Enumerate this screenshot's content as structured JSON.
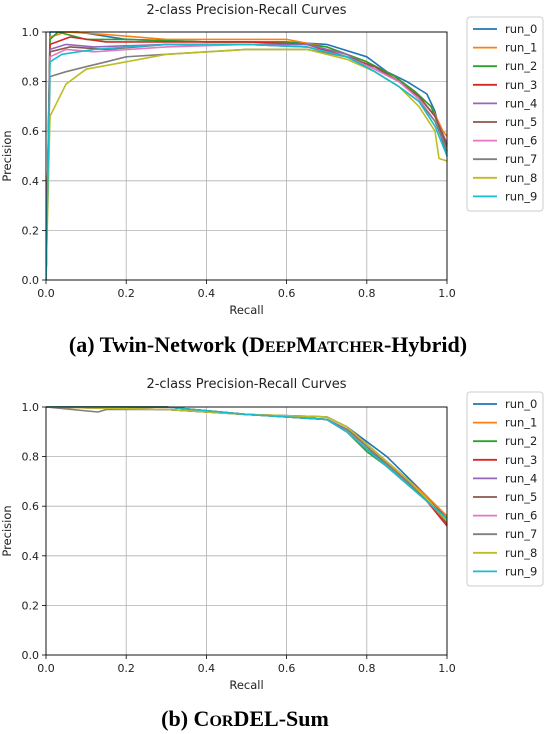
{
  "colors": [
    "#1f77b4",
    "#ff7f0e",
    "#2ca02c",
    "#d62728",
    "#9467bd",
    "#8c564b",
    "#e377c2",
    "#7f7f7f",
    "#bcbd22",
    "#17becf"
  ],
  "captions": {
    "a": {
      "pre": "(a) Twin-Network (D",
      "sc1": "EEP",
      "mid": "M",
      "sc2": "ATCHER",
      "post": "-Hybrid)"
    },
    "b": {
      "pre": "(b) C",
      "sc1": "OR",
      "post": "DEL-Sum"
    }
  },
  "chart_data": [
    {
      "type": "line",
      "title": "2-class Precision-Recall Curves",
      "xlabel": "Recall",
      "ylabel": "Precision",
      "xlim": [
        0,
        1
      ],
      "ylim": [
        0,
        1
      ],
      "xticks": [
        "0.0",
        "0.2",
        "0.4",
        "0.6",
        "0.8",
        "1.0"
      ],
      "yticks": [
        "0.0",
        "0.2",
        "0.4",
        "0.6",
        "0.8",
        "1.0"
      ],
      "grid": true,
      "legend_position": "outside-right",
      "series": [
        {
          "name": "run_0",
          "x": [
            0,
            0.01,
            0.03,
            0.08,
            0.2,
            0.4,
            0.6,
            0.7,
            0.8,
            0.85,
            0.9,
            0.95,
            0.97,
            0.99,
            1.0
          ],
          "y": [
            0,
            1.0,
            1.0,
            1.0,
            0.97,
            0.96,
            0.96,
            0.95,
            0.9,
            0.84,
            0.8,
            0.75,
            0.68,
            0.55,
            0.5
          ]
        },
        {
          "name": "run_1",
          "x": [
            0,
            0.01,
            0.05,
            0.15,
            0.3,
            0.5,
            0.6,
            0.7,
            0.8,
            0.87,
            0.92,
            0.96,
            0.99,
            1.0
          ],
          "y": [
            0,
            0.98,
            1.0,
            0.99,
            0.97,
            0.97,
            0.97,
            0.94,
            0.88,
            0.82,
            0.76,
            0.7,
            0.6,
            0.58
          ]
        },
        {
          "name": "run_2",
          "x": [
            0,
            0.01,
            0.03,
            0.1,
            0.2,
            0.4,
            0.6,
            0.7,
            0.8,
            0.87,
            0.92,
            0.96,
            0.99,
            1.0
          ],
          "y": [
            0,
            0.97,
            1.0,
            0.97,
            0.97,
            0.96,
            0.96,
            0.94,
            0.88,
            0.82,
            0.76,
            0.7,
            0.58,
            0.52
          ]
        },
        {
          "name": "run_3",
          "x": [
            0,
            0.01,
            0.06,
            0.15,
            0.3,
            0.5,
            0.65,
            0.75,
            0.82,
            0.88,
            0.93,
            0.97,
            1.0
          ],
          "y": [
            0,
            0.95,
            0.98,
            0.96,
            0.96,
            0.96,
            0.95,
            0.9,
            0.86,
            0.8,
            0.74,
            0.66,
            0.55
          ]
        },
        {
          "name": "run_4",
          "x": [
            0,
            0.01,
            0.05,
            0.12,
            0.3,
            0.5,
            0.65,
            0.75,
            0.82,
            0.88,
            0.93,
            0.97,
            1.0
          ],
          "y": [
            0,
            0.93,
            0.95,
            0.94,
            0.95,
            0.95,
            0.95,
            0.91,
            0.85,
            0.8,
            0.74,
            0.66,
            0.55
          ]
        },
        {
          "name": "run_5",
          "x": [
            0,
            0.01,
            0.06,
            0.15,
            0.3,
            0.5,
            0.65,
            0.75,
            0.82,
            0.88,
            0.93,
            0.97,
            1.0
          ],
          "y": [
            0,
            0.92,
            0.94,
            0.93,
            0.95,
            0.95,
            0.94,
            0.9,
            0.86,
            0.8,
            0.74,
            0.66,
            0.54
          ]
        },
        {
          "name": "run_6",
          "x": [
            0,
            0.01,
            0.05,
            0.12,
            0.3,
            0.5,
            0.65,
            0.75,
            0.82,
            0.88,
            0.93,
            0.97,
            1.0
          ],
          "y": [
            0,
            0.9,
            0.93,
            0.92,
            0.94,
            0.95,
            0.94,
            0.9,
            0.85,
            0.8,
            0.73,
            0.64,
            0.52
          ]
        },
        {
          "name": "run_7",
          "x": [
            0,
            0.01,
            0.05,
            0.1,
            0.15,
            0.2,
            0.3,
            0.5,
            0.65,
            0.75,
            0.82,
            0.88,
            0.93,
            0.97,
            1.0
          ],
          "y": [
            0,
            0.82,
            0.84,
            0.86,
            0.88,
            0.9,
            0.91,
            0.93,
            0.93,
            0.9,
            0.84,
            0.78,
            0.72,
            0.64,
            0.52
          ]
        },
        {
          "name": "run_8",
          "x": [
            0,
            0.01,
            0.05,
            0.1,
            0.2,
            0.3,
            0.5,
            0.65,
            0.75,
            0.82,
            0.88,
            0.93,
            0.97,
            0.98,
            1.0
          ],
          "y": [
            0,
            0.66,
            0.79,
            0.85,
            0.88,
            0.91,
            0.93,
            0.93,
            0.89,
            0.84,
            0.78,
            0.7,
            0.6,
            0.49,
            0.48
          ]
        },
        {
          "name": "run_9",
          "x": [
            0,
            0.01,
            0.04,
            0.12,
            0.3,
            0.5,
            0.65,
            0.75,
            0.82,
            0.88,
            0.93,
            0.97,
            1.0
          ],
          "y": [
            0,
            0.88,
            0.91,
            0.93,
            0.95,
            0.95,
            0.94,
            0.9,
            0.84,
            0.78,
            0.72,
            0.62,
            0.5
          ]
        }
      ]
    },
    {
      "type": "line",
      "title": "2-class Precision-Recall Curves",
      "xlabel": "Recall",
      "ylabel": "Precision",
      "xlim": [
        0,
        1
      ],
      "ylim": [
        0,
        1
      ],
      "xticks": [
        "0.0",
        "0.2",
        "0.4",
        "0.6",
        "0.8",
        "1.0"
      ],
      "yticks": [
        "0.0",
        "0.2",
        "0.4",
        "0.6",
        "0.8",
        "1.0"
      ],
      "grid": true,
      "legend_position": "outside-right",
      "series": [
        {
          "name": "run_0",
          "x": [
            0,
            0.3,
            0.5,
            0.7,
            0.75,
            0.8,
            0.85,
            0.9,
            0.95,
            1.0
          ],
          "y": [
            1.0,
            1.0,
            0.97,
            0.96,
            0.92,
            0.86,
            0.8,
            0.72,
            0.64,
            0.55
          ]
        },
        {
          "name": "run_1",
          "x": [
            0,
            0.3,
            0.5,
            0.7,
            0.75,
            0.8,
            0.85,
            0.9,
            0.95,
            1.0
          ],
          "y": [
            1.0,
            1.0,
            0.97,
            0.95,
            0.91,
            0.85,
            0.78,
            0.71,
            0.64,
            0.56
          ]
        },
        {
          "name": "run_2",
          "x": [
            0,
            0.3,
            0.5,
            0.7,
            0.75,
            0.8,
            0.85,
            0.9,
            0.95,
            1.0
          ],
          "y": [
            1.0,
            1.0,
            0.97,
            0.95,
            0.9,
            0.82,
            0.76,
            0.69,
            0.62,
            0.55
          ]
        },
        {
          "name": "run_3",
          "x": [
            0,
            0.3,
            0.5,
            0.7,
            0.75,
            0.8,
            0.85,
            0.9,
            0.95,
            1.0
          ],
          "y": [
            1.0,
            1.0,
            0.97,
            0.95,
            0.91,
            0.84,
            0.77,
            0.7,
            0.62,
            0.52
          ]
        },
        {
          "name": "run_4",
          "x": [
            0,
            0.3,
            0.5,
            0.7,
            0.75,
            0.8,
            0.85,
            0.9,
            0.95,
            1.0
          ],
          "y": [
            1.0,
            0.99,
            0.97,
            0.96,
            0.92,
            0.85,
            0.78,
            0.71,
            0.63,
            0.54
          ]
        },
        {
          "name": "run_5",
          "x": [
            0,
            0.3,
            0.5,
            0.7,
            0.75,
            0.8,
            0.85,
            0.9,
            0.95,
            1.0
          ],
          "y": [
            1.0,
            0.99,
            0.97,
            0.95,
            0.9,
            0.83,
            0.77,
            0.7,
            0.63,
            0.53
          ]
        },
        {
          "name": "run_6",
          "x": [
            0,
            0.3,
            0.5,
            0.7,
            0.75,
            0.8,
            0.85,
            0.9,
            0.95,
            1.0
          ],
          "y": [
            1.0,
            0.99,
            0.97,
            0.95,
            0.9,
            0.83,
            0.76,
            0.69,
            0.62,
            0.54
          ]
        },
        {
          "name": "run_7",
          "x": [
            0,
            0.13,
            0.15,
            0.3,
            0.5,
            0.7,
            0.75,
            0.8,
            0.85,
            0.9,
            0.95,
            1.0
          ],
          "y": [
            1.0,
            0.98,
            0.99,
            0.99,
            0.97,
            0.95,
            0.91,
            0.84,
            0.77,
            0.7,
            0.62,
            0.54
          ]
        },
        {
          "name": "run_8",
          "x": [
            0,
            0.3,
            0.5,
            0.7,
            0.75,
            0.8,
            0.85,
            0.9,
            0.95,
            1.0
          ],
          "y": [
            1.0,
            0.99,
            0.97,
            0.96,
            0.92,
            0.85,
            0.78,
            0.71,
            0.63,
            0.54
          ]
        },
        {
          "name": "run_9",
          "x": [
            0,
            0.3,
            0.5,
            0.7,
            0.75,
            0.8,
            0.85,
            0.9,
            0.95,
            1.0
          ],
          "y": [
            1.0,
            1.0,
            0.97,
            0.95,
            0.9,
            0.83,
            0.76,
            0.69,
            0.62,
            0.55
          ]
        }
      ]
    }
  ]
}
